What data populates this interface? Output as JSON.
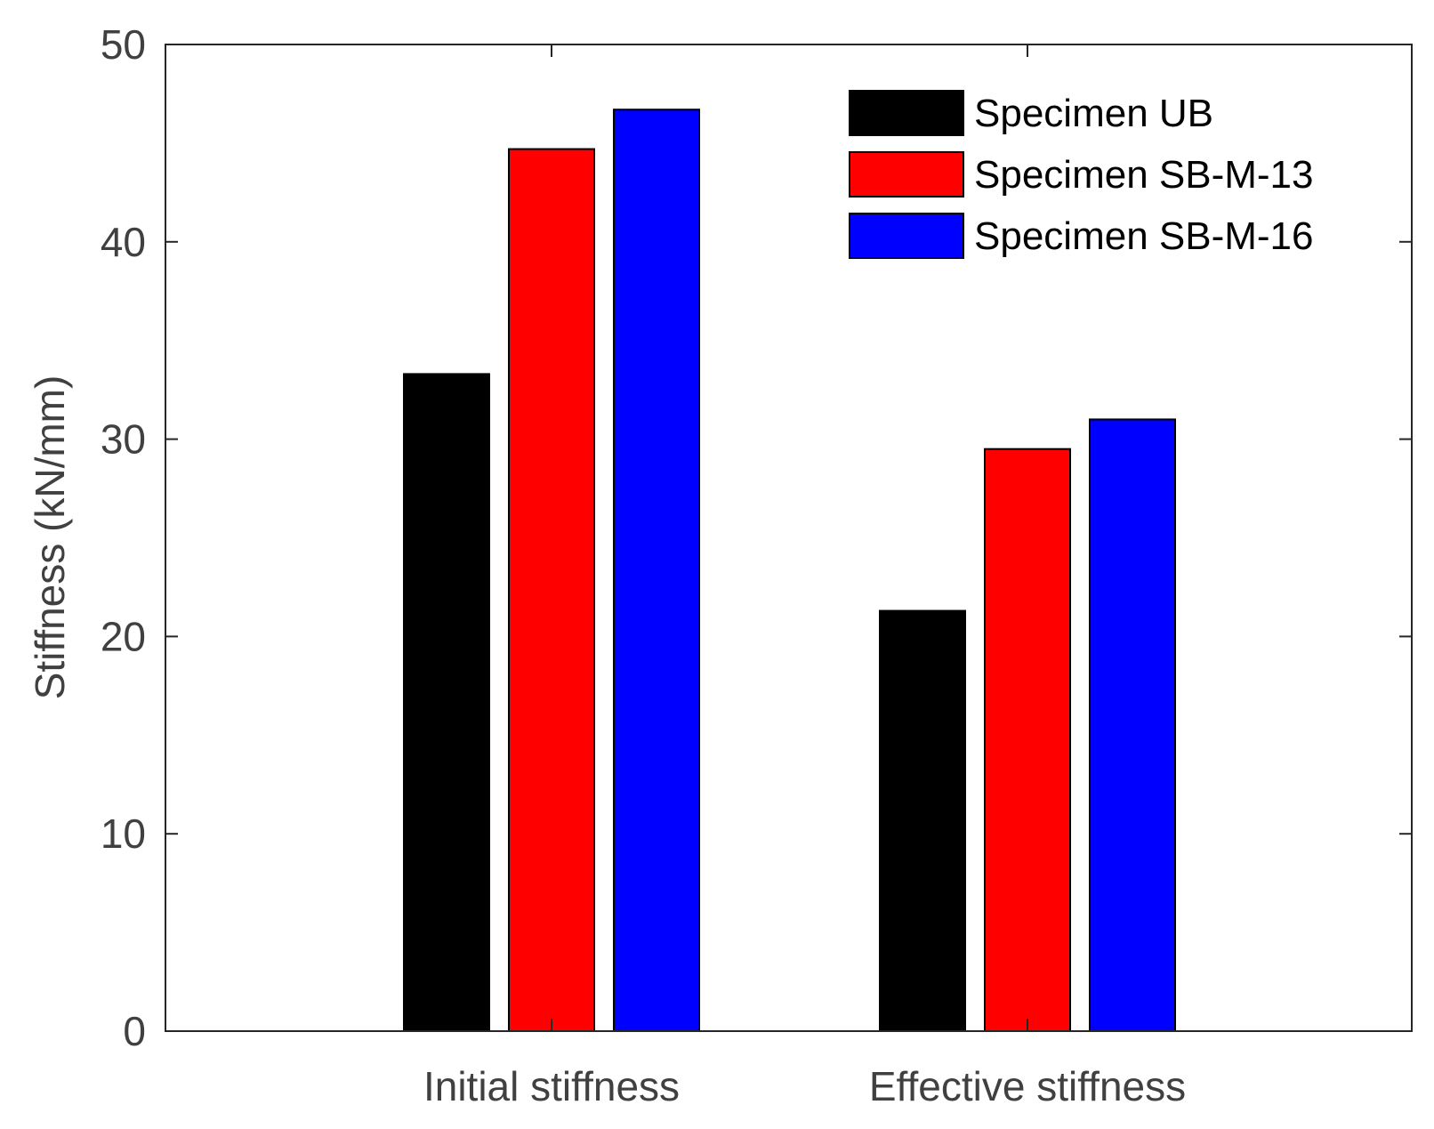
{
  "chart_data": {
    "type": "bar",
    "title": "",
    "xlabel": "",
    "ylabel": "Stiffness (kN/mm)",
    "ylim": [
      0,
      50
    ],
    "yticks": [
      0,
      10,
      20,
      30,
      40,
      50
    ],
    "grid": false,
    "legend_position": "top-right",
    "categories": [
      "Initial stiffness",
      "Effective stiffness"
    ],
    "series": [
      {
        "name": "Specimen UB",
        "color": "#000000",
        "values": [
          33.3,
          21.3
        ]
      },
      {
        "name": "Specimen SB-M-13",
        "color": "#ff0000",
        "values": [
          44.7,
          29.5
        ]
      },
      {
        "name": "Specimen SB-M-16",
        "color": "#0000ff",
        "values": [
          46.7,
          31.0
        ]
      }
    ]
  }
}
